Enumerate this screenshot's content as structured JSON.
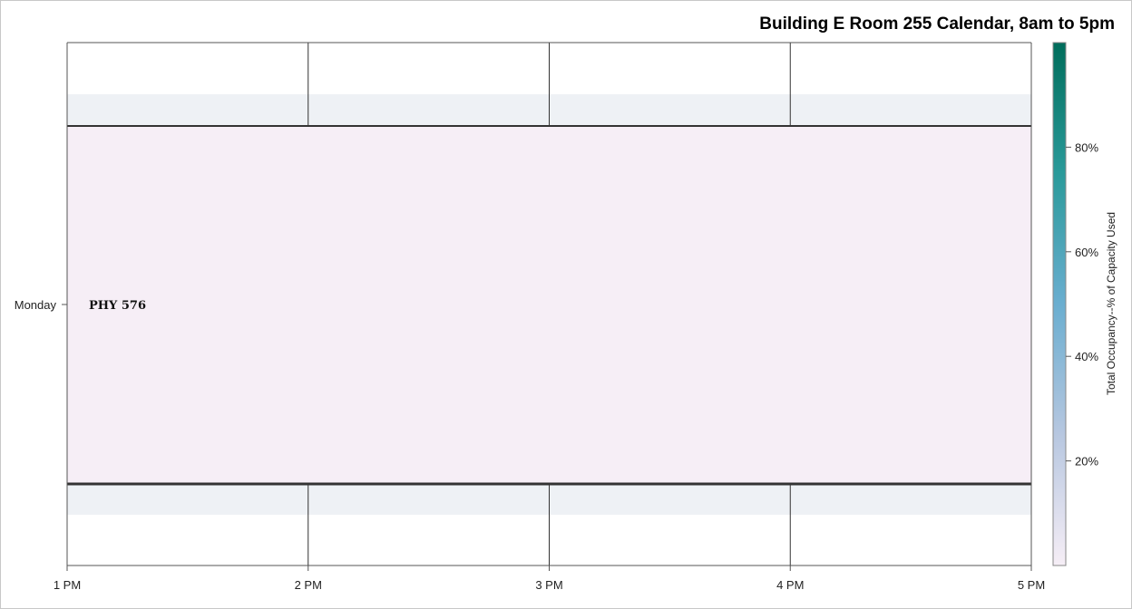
{
  "chart_data": {
    "type": "heatmap",
    "title": "Building E Room 255 Calendar, 8am to 5pm",
    "x_ticks": [
      "1 PM",
      "2 PM",
      "3 PM",
      "4 PM",
      "5 PM"
    ],
    "x_range_hours": [
      13,
      17
    ],
    "y_categories": [
      "Monday"
    ],
    "events": [
      {
        "label": "PHY 576",
        "day": "Monday",
        "start_hour": 13,
        "end_hour": 17,
        "occupancy": 0.02
      }
    ],
    "colorbar": {
      "title": "Total Occupancy--% of Capacity Used",
      "range": [
        0,
        1
      ],
      "ticks": [
        {
          "value": 0.2,
          "label": "20%"
        },
        {
          "value": 0.4,
          "label": "40%"
        },
        {
          "value": 0.6,
          "label": "60%"
        },
        {
          "value": 0.8,
          "label": "80%"
        }
      ],
      "colors": [
        "#f6eef6",
        "#b7c7e0",
        "#6aaed0",
        "#2a9a9a",
        "#006d5b"
      ]
    },
    "grid": true
  }
}
